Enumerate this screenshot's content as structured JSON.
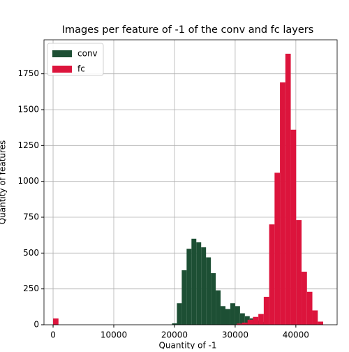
{
  "chart_data": {
    "type": "histogram",
    "title": "Images per feature of -1 of the conv and fc layers",
    "xlabel": "Quantity of -1",
    "ylabel": "Quantity of features",
    "xlim": [
      -1500,
      46800
    ],
    "ylim": [
      0,
      1987
    ],
    "xticks": [
      0,
      10000,
      20000,
      30000,
      40000
    ],
    "yticks": [
      0,
      250,
      500,
      750,
      1000,
      1250,
      1500,
      1750
    ],
    "grid": true,
    "legend": "upper left",
    "series": [
      {
        "name": "conv",
        "color": "#1d4f34",
        "bins": [
          19600,
          20400,
          21200,
          22000,
          22800,
          23600,
          24400,
          25200,
          26000,
          26800,
          27600,
          28400,
          29200,
          30000,
          30800,
          31600,
          32400,
          33200,
          34000,
          34800,
          35600,
          36400
        ],
        "counts": [
          10,
          150,
          380,
          530,
          600,
          575,
          540,
          470,
          360,
          240,
          130,
          110,
          150,
          130,
          80,
          60,
          45,
          30,
          20,
          10,
          5
        ]
      },
      {
        "name": "fc",
        "color": "#dc143c",
        "bins": [
          0,
          890,
          1780,
          2670,
          3560,
          4450,
          5340,
          6230,
          7120,
          8010,
          8900,
          9790,
          10680,
          11570,
          12460,
          13350,
          14240,
          15130,
          16020,
          16910,
          17800,
          18690,
          19580,
          20470,
          21360,
          22250,
          23140,
          24030,
          24920,
          25810,
          26700,
          27590,
          28480,
          29370,
          30260,
          31150,
          32040,
          32930,
          33820,
          34710,
          35600,
          36490,
          37380,
          38270,
          39160,
          40050,
          40940,
          41830,
          42720,
          43610,
          44500
        ],
        "counts": [
          44,
          0,
          0,
          0,
          0,
          0,
          0,
          0,
          0,
          0,
          0,
          0,
          0,
          0,
          0,
          0,
          0,
          0,
          0,
          0,
          0,
          0,
          0,
          0,
          0,
          0,
          0,
          0,
          0,
          0,
          0,
          0,
          0,
          0,
          8,
          15,
          35,
          55,
          75,
          195,
          700,
          1060,
          1690,
          1890,
          1360,
          730,
          370,
          230,
          100,
          22
        ]
      }
    ]
  }
}
